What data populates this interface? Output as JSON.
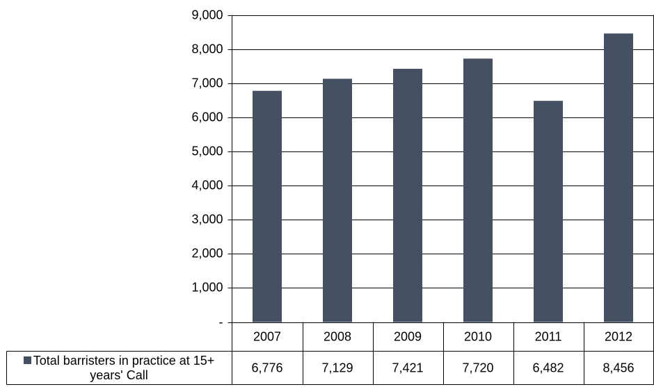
{
  "chart_data": {
    "type": "bar",
    "categories": [
      "2007",
      "2008",
      "2009",
      "2010",
      "2011",
      "2012"
    ],
    "series": [
      {
        "name": "Total barristers in practice at 15+ years' Call",
        "color": "#465063",
        "values": [
          6776,
          7129,
          7421,
          7720,
          6482,
          8456
        ],
        "value_labels": [
          "6,776",
          "7,129",
          "7,421",
          "7,720",
          "6,482",
          "8,456"
        ]
      }
    ],
    "ylim": [
      0,
      9000
    ],
    "yticks": [
      {
        "value": 0,
        "label": "-"
      },
      {
        "value": 1000,
        "label": "1,000"
      },
      {
        "value": 2000,
        "label": "2,000"
      },
      {
        "value": 3000,
        "label": "3,000"
      },
      {
        "value": 4000,
        "label": "4,000"
      },
      {
        "value": 5000,
        "label": "5,000"
      },
      {
        "value": 6000,
        "label": "6,000"
      },
      {
        "value": 7000,
        "label": "7,000"
      },
      {
        "value": 8000,
        "label": "8,000"
      },
      {
        "value": 9000,
        "label": "9,000"
      }
    ],
    "grid": true,
    "legend": "data-table"
  }
}
